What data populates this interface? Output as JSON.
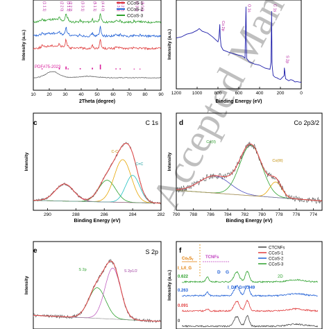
{
  "chart_data": [
    {
      "type": "line",
      "panel": "a",
      "xlabel": "2Theta (degree)",
      "ylabel": "Intensity (a.u.)",
      "xlim": [
        10,
        90
      ],
      "xticks": [
        10,
        20,
        30,
        40,
        50,
        60,
        70,
        80,
        90
      ],
      "legend": {
        "placement": "top-right",
        "entries": [
          "CCoS-1",
          "CCoS-2",
          "CCoS-3"
        ]
      },
      "series": [
        {
          "name": "CCoS-3",
          "color": "#2ca02c",
          "offset": 3
        },
        {
          "name": "CCoS-2",
          "color": "#1f5fd6",
          "offset": 2
        },
        {
          "name": "CCoS-1",
          "color": "#e03a3a",
          "offset": 1
        },
        {
          "name": "",
          "color": "#666666",
          "offset": 0
        }
      ],
      "peaks": [
        {
          "x": 15.5,
          "label": "(1 1 1)",
          "h": 0.25
        },
        {
          "x": 26.3,
          "label": "(2 2 0)",
          "h": 0.3
        },
        {
          "x": 30.5,
          "label": "(3 1 1)",
          "h": 0.9
        },
        {
          "x": 31.8,
          "label": "(2 2 2)",
          "h": 0.25
        },
        {
          "x": 39.4,
          "label": "(3 3 1)",
          "h": 0.2
        },
        {
          "x": 47.0,
          "label": "(5 1 1)",
          "h": 0.35
        },
        {
          "x": 52.0,
          "label": "(4 4 0)",
          "h": 1.0
        },
        {
          "x": 61.8,
          "label": "(5 3 3)",
          "h": 0.2
        },
        {
          "x": 64.4,
          "label": "(6 2 2)",
          "h": 0.2
        },
        {
          "x": 73.2,
          "label": "(7 3 1)",
          "h": 0.15
        },
        {
          "x": 76.8,
          "label": "(8 0 0)",
          "h": 0.15
        }
      ],
      "reference": {
        "label": "PDF#75-2023",
        "color": "#d81b9a",
        "positions": [
          15.5,
          26.3,
          30.5,
          31.8,
          39.4,
          47.0,
          52.0,
          61.8,
          64.4,
          73.2,
          76.8
        ],
        "heights": [
          0.2,
          0.35,
          0.6,
          0.2,
          0.25,
          0.35,
          1.0,
          0.2,
          0.2,
          0.15,
          0.15
        ]
      }
    },
    {
      "type": "line",
      "panel": "b",
      "xlabel": "Binding Energy (eV)",
      "ylabel": "Intensity (a.u.)",
      "xlim": [
        1200,
        0
      ],
      "xticks": [
        1200,
        1000,
        800,
        600,
        400,
        200,
        0
      ],
      "color": "#1a1aa8",
      "x": [
        1200,
        1150,
        1100,
        1050,
        1000,
        980,
        950,
        900,
        850,
        800,
        790,
        782,
        778,
        770,
        750,
        700,
        650,
        600,
        560,
        540,
        531,
        525,
        500,
        450,
        400,
        350,
        300,
        290,
        285,
        280,
        270,
        250,
        230,
        220,
        200,
        180,
        165,
        162,
        150,
        120,
        100,
        80,
        60,
        40,
        20,
        0
      ],
      "y": [
        0.6,
        0.62,
        0.65,
        0.67,
        0.7,
        0.72,
        0.68,
        0.66,
        0.62,
        0.55,
        0.6,
        0.78,
        0.62,
        0.5,
        0.44,
        0.42,
        0.4,
        0.38,
        0.36,
        0.34,
        1.0,
        0.34,
        0.3,
        0.27,
        0.25,
        0.22,
        0.2,
        0.3,
        0.95,
        0.25,
        0.12,
        0.1,
        0.09,
        0.08,
        0.07,
        0.1,
        0.12,
        0.22,
        0.08,
        0.05,
        0.06,
        0.05,
        0.04,
        0.04,
        0.03,
        0.03
      ],
      "annotations": [
        {
          "x": 780,
          "label": "Co 2p"
        },
        {
          "x": 531,
          "label": "O 1s"
        },
        {
          "x": 285,
          "label": "C 1s"
        },
        {
          "x": 162,
          "label": "S 2p"
        }
      ]
    },
    {
      "type": "line",
      "panel": "c",
      "title": "C 1s",
      "xlabel": "Binding Energy (eV)",
      "ylabel": "Intensity",
      "xlim": [
        291,
        282
      ],
      "xticks": [
        290,
        288,
        286,
        284,
        282
      ],
      "components": [
        {
          "name": "",
          "center": 288.8,
          "sigma": 0.65,
          "amp": 0.22,
          "color": "#c04080"
        },
        {
          "name": "",
          "center": 285.8,
          "sigma": 0.6,
          "amp": 0.28,
          "color": "#2ca02c"
        },
        {
          "name": "C-C",
          "center": 284.7,
          "sigma": 0.6,
          "amp": 0.55,
          "color": "#e6a500"
        },
        {
          "name": "C=C",
          "center": 284.0,
          "sigma": 0.5,
          "amp": 0.35,
          "color": "#20c0c0"
        }
      ],
      "envelope_color": "#e05050"
    },
    {
      "type": "line",
      "panel": "d",
      "title": "Co 2p3/2",
      "xlabel": "Binding Energy (eV)",
      "ylabel": "Intensity",
      "xlim": [
        790,
        773
      ],
      "xticks": [
        790,
        788,
        786,
        784,
        782,
        780,
        778,
        776,
        774
      ],
      "components": [
        {
          "name": "Co(II)",
          "center": 785.5,
          "sigma": 1.8,
          "amp": 0.22,
          "color": "#5050c0"
        },
        {
          "name": "",
          "center": 781.3,
          "sigma": 1.3,
          "amp": 0.65,
          "color": "#2ca02c"
        },
        {
          "name": "Co(III)",
          "center": 778.4,
          "sigma": 0.7,
          "amp": 0.2,
          "color": "#e6a500"
        }
      ],
      "envelope_color": "#e05050"
    },
    {
      "type": "line",
      "panel": "e",
      "title": "S 2p",
      "ylabel": "Intensity",
      "xlim": [
        168,
        159
      ],
      "components": [
        {
          "name": "S 2p",
          "center": 163.5,
          "sigma": 0.6,
          "amp": 0.45,
          "color": "#2ca02c"
        },
        {
          "name": "S 2p1/2",
          "center": 162.4,
          "sigma": 0.55,
          "amp": 0.75,
          "color": "#c060c0"
        }
      ],
      "envelope_color": "#e05050"
    },
    {
      "type": "line",
      "panel": "f",
      "legend": {
        "placement": "top-right",
        "entries": [
          "CTCNFs",
          "CCoS-1",
          "CCoS-2",
          "CCoS-3"
        ]
      },
      "series": [
        {
          "name": "CCoS-3",
          "color": "#2ca02c",
          "ratio": "0.622"
        },
        {
          "name": "CCoS-2",
          "color": "#1f5fd6",
          "ratio": "0.263"
        },
        {
          "name": "CCoS-1",
          "color": "#e03a3a",
          "ratio": "0.091"
        },
        {
          "name": "CTCNFs",
          "color": "#444444",
          "ratio": "0"
        }
      ],
      "labels": {
        "coxsy": "CoₓSᵧ",
        "tcnfs": "TCNFs",
        "ratio_axis": "I_L/I_G",
        "d": "D",
        "g": "G",
        "twod": "2D",
        "idig": "I_D/I_G=0.949"
      }
    }
  ],
  "watermark": "Accepted Manuscript"
}
